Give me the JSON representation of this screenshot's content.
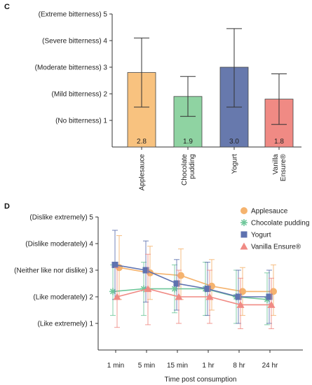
{
  "chart_data": [
    {
      "panel_label": "C",
      "type": "bar",
      "categories": [
        "Applesauce",
        "Chocolate pudding",
        "Yogurt",
        "Vanilla Ensure®"
      ],
      "category_lines": [
        [
          "Applesauce"
        ],
        [
          "Chocolate",
          "pudding"
        ],
        [
          "Yogurt"
        ],
        [
          "Vanilla",
          "Ensure®"
        ]
      ],
      "values": [
        2.8,
        1.9,
        3.0,
        1.8
      ],
      "value_labels": [
        "2.8",
        "1.9",
        "3.0",
        "1.8"
      ],
      "error_low": [
        1.5,
        1.15,
        1.5,
        0.85
      ],
      "error_high": [
        4.1,
        2.65,
        4.45,
        2.75
      ],
      "colors": [
        "#f8c27f",
        "#8fd3a2",
        "#6779ad",
        "#f08a84"
      ],
      "ylim": [
        0,
        5
      ],
      "yticks": [
        1,
        2,
        3,
        4,
        5
      ],
      "ytick_labels": [
        "(No bitterness)  1",
        "(Mild bitterness)  2",
        "(Moderate bitterness)  3",
        "(Severe bitterness)  4",
        "(Extreme bitterness)  5"
      ],
      "xlabel": "",
      "ylabel": ""
    },
    {
      "panel_label": "D",
      "type": "line",
      "x": [
        "1 min",
        "5 min",
        "15 min",
        "1 hr",
        "8 hr",
        "24 hr"
      ],
      "xlabel": "Time post consumption",
      "ylabel": "",
      "ylim": [
        0,
        5
      ],
      "yticks": [
        1,
        2,
        3,
        4,
        5
      ],
      "ytick_labels": [
        "(Like extremely)  1",
        "(Like moderately)  2",
        "(Neither like nor dislike)  3",
        "(Dislike moderately)  4",
        "(Dislike extremely)  5"
      ],
      "legend": "top-right",
      "series": [
        {
          "name": "Applesauce",
          "marker": "circle",
          "color": "#f5b36e",
          "values": [
            3.1,
            2.9,
            2.8,
            2.4,
            2.2,
            2.2
          ],
          "error_low": [
            1.9,
            1.9,
            1.9,
            1.5,
            1.3,
            1.3
          ],
          "error_high": [
            4.3,
            3.9,
            3.8,
            3.4,
            3.1,
            3.2
          ]
        },
        {
          "name": "Chocolate pudding",
          "marker": "asterisk",
          "color": "#6fc79a",
          "values": [
            2.2,
            2.3,
            2.3,
            2.3,
            2.0,
            1.9
          ],
          "error_low": [
            1.3,
            1.3,
            1.4,
            1.3,
            1.0,
            0.95
          ],
          "error_high": [
            3.2,
            3.3,
            3.2,
            3.3,
            3.0,
            2.9
          ]
        },
        {
          "name": "Yogurt",
          "marker": "square",
          "color": "#5e72b0",
          "values": [
            3.2,
            3.0,
            2.5,
            2.3,
            2.0,
            2.0
          ],
          "error_low": [
            1.9,
            1.8,
            1.5,
            1.3,
            1.0,
            1.0
          ],
          "error_high": [
            4.5,
            4.1,
            3.4,
            3.3,
            3.0,
            3.0
          ]
        },
        {
          "name": "Vanilla Ensure®",
          "marker": "triangle",
          "color": "#f08a84",
          "values": [
            2.0,
            2.3,
            2.0,
            2.0,
            1.7,
            1.7
          ],
          "error_low": [
            0.85,
            0.95,
            1.0,
            1.0,
            0.8,
            0.8
          ],
          "error_high": [
            3.1,
            3.6,
            3.0,
            3.0,
            2.7,
            2.7
          ]
        }
      ]
    }
  ]
}
